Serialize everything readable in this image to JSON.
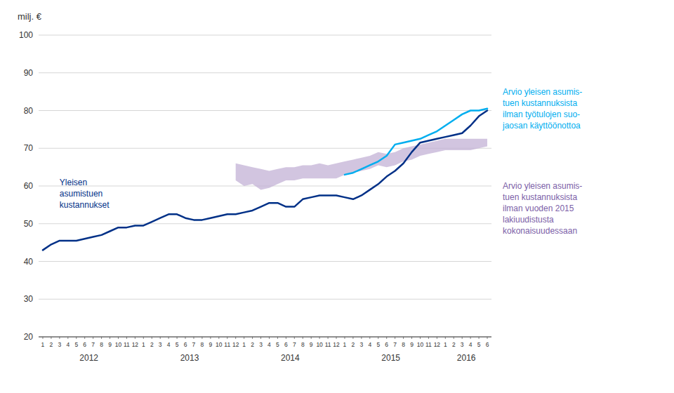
{
  "chart_data": {
    "type": "line",
    "y_label": "milj. €",
    "ylim": [
      20,
      100
    ],
    "yticks": [
      20,
      30,
      40,
      50,
      60,
      70,
      80,
      90,
      100
    ],
    "grid": true,
    "categories": [
      "1",
      "2",
      "3",
      "4",
      "5",
      "6",
      "7",
      "8",
      "9",
      "10",
      "11",
      "12",
      "1",
      "2",
      "3",
      "4",
      "5",
      "6",
      "7",
      "8",
      "9",
      "10",
      "11",
      "12",
      "1",
      "2",
      "3",
      "4",
      "5",
      "6",
      "7",
      "8",
      "9",
      "10",
      "11",
      "12",
      "1",
      "2",
      "3",
      "4",
      "5",
      "6",
      "7",
      "8",
      "9",
      "10",
      "11",
      "12",
      "1",
      "2",
      "3",
      "4",
      "5",
      "6"
    ],
    "x_group_labels": [
      "2012",
      "2013",
      "2014",
      "2015",
      "2016"
    ],
    "series": [
      {
        "name": "Arvio yleisen asumis-\ntuen kustannuksista\nilman vuoden 2015\nlakiuudistusta\nkokonaisuudessaan",
        "type": "band",
        "color": "#C3B1D6",
        "lower": [
          null,
          null,
          null,
          null,
          null,
          null,
          null,
          null,
          null,
          null,
          null,
          null,
          null,
          null,
          null,
          null,
          null,
          null,
          null,
          null,
          null,
          null,
          null,
          61.5,
          60.0,
          60.5,
          59.0,
          59.5,
          60.5,
          61.5,
          61.5,
          62.0,
          62.0,
          62.0,
          62.0,
          62.0,
          63.0,
          63.5,
          64.0,
          64.5,
          65.5,
          65.0,
          65.5,
          66.5,
          67.0,
          68.0,
          68.5,
          69.0,
          69.5,
          69.5,
          69.5,
          69.5,
          70.0,
          70.5
        ],
        "upper": [
          null,
          null,
          null,
          null,
          null,
          null,
          null,
          null,
          null,
          null,
          null,
          null,
          null,
          null,
          null,
          null,
          null,
          null,
          null,
          null,
          null,
          null,
          null,
          66.0,
          65.5,
          65.0,
          64.5,
          64.0,
          64.5,
          65.0,
          65.0,
          65.5,
          65.5,
          66.0,
          65.5,
          66.0,
          66.5,
          67.0,
          67.5,
          68.0,
          69.0,
          68.5,
          69.0,
          70.0,
          70.5,
          71.0,
          71.5,
          72.0,
          72.5,
          72.5,
          72.5,
          72.5,
          72.5,
          72.5
        ]
      },
      {
        "name": "Yleisen\nasumistuen\nkustannukset",
        "type": "line",
        "color": "#003087",
        "values": [
          43.0,
          44.5,
          45.5,
          45.5,
          45.5,
          46.0,
          46.5,
          47.0,
          48.0,
          49.0,
          49.0,
          49.5,
          49.5,
          50.5,
          51.5,
          52.5,
          52.5,
          51.5,
          51.0,
          51.0,
          51.5,
          52.0,
          52.5,
          52.5,
          53.0,
          53.5,
          54.5,
          55.5,
          55.5,
          54.5,
          54.5,
          56.5,
          57.0,
          57.5,
          57.5,
          57.5,
          57.0,
          56.5,
          57.5,
          59.0,
          60.5,
          62.5,
          64.0,
          66.0,
          69.0,
          71.5,
          72.0,
          72.5,
          73.0,
          73.5,
          74.0,
          76.0,
          78.5,
          80.0
        ]
      },
      {
        "name": "Arvio yleisen asumis-\ntuen kustannuksista\nilman työtulojen suo-\njaosan käyttöönottoa",
        "type": "line",
        "color": "#00AEEF",
        "values": [
          null,
          null,
          null,
          null,
          null,
          null,
          null,
          null,
          null,
          null,
          null,
          null,
          null,
          null,
          null,
          null,
          null,
          null,
          null,
          null,
          null,
          null,
          null,
          null,
          null,
          null,
          null,
          null,
          null,
          null,
          null,
          null,
          null,
          null,
          null,
          null,
          63.0,
          63.5,
          64.5,
          65.5,
          66.5,
          68.0,
          71.0,
          71.5,
          72.0,
          72.5,
          73.5,
          74.5,
          76.0,
          77.5,
          79.0,
          80.0,
          80.0,
          80.5
        ]
      }
    ]
  }
}
